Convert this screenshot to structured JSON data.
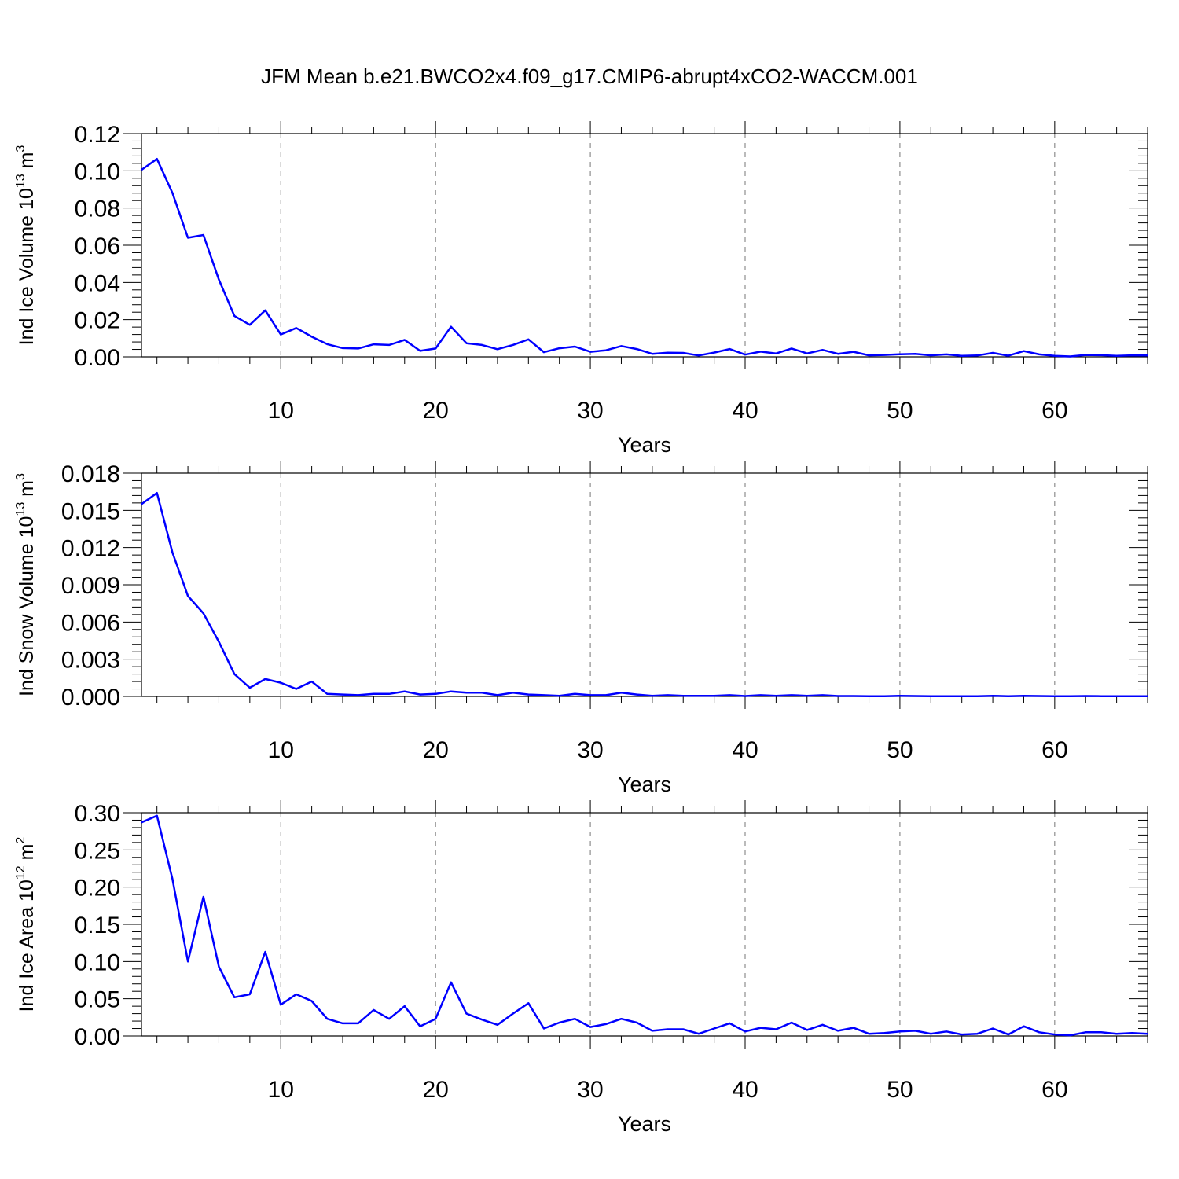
{
  "title": "JFM Mean b.e21.BWCO2x4.f09_g17.CMIP6-abrupt4xCO2-WACCM.001",
  "colors": {
    "line": "#0000ff",
    "grid": "#777777"
  },
  "chart_data": [
    {
      "type": "line",
      "ylabel": {
        "prefix": "Ind Ice Volume 10",
        "sup": "13",
        "unit": " m",
        "unit_sup": "3"
      },
      "xlabel": "Years",
      "xlim": [
        1,
        66
      ],
      "ylim": [
        0,
        0.12
      ],
      "xticks": [
        10,
        20,
        30,
        40,
        50,
        60
      ],
      "yticks": [
        0,
        0.02,
        0.04,
        0.06,
        0.08,
        0.1,
        0.12
      ],
      "ytick_labels": [
        "0.00",
        "0.02",
        "0.04",
        "0.06",
        "0.08",
        "0.10",
        "0.12"
      ],
      "grid": "vertical-dashed",
      "x": [
        1,
        2,
        3,
        4,
        5,
        6,
        7,
        8,
        9,
        10,
        11,
        12,
        13,
        14,
        15,
        16,
        17,
        18,
        19,
        20,
        21,
        22,
        23,
        24,
        25,
        26,
        27,
        28,
        29,
        30,
        31,
        32,
        33,
        34,
        35,
        36,
        37,
        38,
        39,
        40,
        41,
        42,
        43,
        44,
        45,
        46,
        47,
        48,
        49,
        50,
        51,
        52,
        53,
        54,
        55,
        56,
        57,
        58,
        59,
        60,
        61,
        62,
        63,
        64,
        65,
        66
      ],
      "values": [
        0.1005,
        0.1064,
        0.0881,
        0.064,
        0.0655,
        0.0415,
        0.022,
        0.0172,
        0.025,
        0.012,
        0.0155,
        0.0108,
        0.0068,
        0.0047,
        0.0045,
        0.0067,
        0.0064,
        0.0091,
        0.0032,
        0.0045,
        0.0162,
        0.0073,
        0.0064,
        0.0041,
        0.0064,
        0.0094,
        0.0025,
        0.0046,
        0.0055,
        0.0027,
        0.0035,
        0.0058,
        0.0042,
        0.0016,
        0.0022,
        0.0021,
        0.0007,
        0.0023,
        0.0042,
        0.0012,
        0.0028,
        0.0018,
        0.0045,
        0.0018,
        0.0037,
        0.0016,
        0.0027,
        0.0008,
        0.001,
        0.0014,
        0.0016,
        0.0008,
        0.0013,
        0.0005,
        0.0007,
        0.0021,
        0.0006,
        0.0031,
        0.0013,
        0.0005,
        0.0002,
        0.001,
        0.0009,
        0.0005,
        0.0008,
        0.0007
      ]
    },
    {
      "type": "line",
      "ylabel": {
        "prefix": "Ind Snow Volume 10",
        "sup": "13",
        "unit": " m",
        "unit_sup": "3"
      },
      "xlabel": "Years",
      "xlim": [
        1,
        66
      ],
      "ylim": [
        0,
        0.018
      ],
      "xticks": [
        10,
        20,
        30,
        40,
        50,
        60
      ],
      "yticks": [
        0,
        0.003,
        0.006,
        0.009,
        0.012,
        0.015,
        0.018
      ],
      "ytick_labels": [
        "0.000",
        "0.003",
        "0.006",
        "0.009",
        "0.012",
        "0.015",
        "0.018"
      ],
      "grid": "vertical-dashed",
      "x": [
        1,
        2,
        3,
        4,
        5,
        6,
        7,
        8,
        9,
        10,
        11,
        12,
        13,
        14,
        15,
        16,
        17,
        18,
        19,
        20,
        21,
        22,
        23,
        24,
        25,
        26,
        27,
        28,
        29,
        30,
        31,
        32,
        33,
        34,
        35,
        36,
        37,
        38,
        39,
        40,
        41,
        42,
        43,
        44,
        45,
        46,
        47,
        48,
        49,
        50,
        51,
        52,
        53,
        54,
        55,
        56,
        57,
        58,
        59,
        60,
        61,
        62,
        63,
        64,
        65,
        66
      ],
      "values": [
        0.0155,
        0.0164,
        0.0116,
        0.0081,
        0.0067,
        0.0044,
        0.0018,
        0.0007,
        0.0014,
        0.0011,
        0.0006,
        0.0012,
        0.0002,
        0.00015,
        0.0001,
        0.0002,
        0.0002,
        0.0004,
        0.00015,
        0.0002,
        0.0004,
        0.0003,
        0.0003,
        0.0001,
        0.0003,
        0.00015,
        0.0001,
        5e-05,
        0.0002,
        0.0001,
        0.0001,
        0.0003,
        0.00015,
        5e-05,
        0.0001,
        5e-05,
        5e-05,
        5e-05,
        0.0001,
        3e-05,
        0.0001,
        5e-05,
        0.0001,
        5e-05,
        0.0001,
        3e-05,
        3e-05,
        2e-05,
        2e-05,
        5e-05,
        3e-05,
        2e-05,
        2e-05,
        2e-05,
        2e-05,
        5e-05,
        2e-05,
        5e-05,
        3e-05,
        2e-05,
        1e-05,
        3e-05,
        2e-05,
        1e-05,
        2e-05,
        2e-05
      ]
    },
    {
      "type": "line",
      "ylabel": {
        "prefix": "Ind Ice Area 10",
        "sup": "12",
        "unit": " m",
        "unit_sup": "2"
      },
      "xlabel": "Years",
      "xlim": [
        1,
        66
      ],
      "ylim": [
        0,
        0.3
      ],
      "xticks": [
        10,
        20,
        30,
        40,
        50,
        60
      ],
      "yticks": [
        0,
        0.05,
        0.1,
        0.15,
        0.2,
        0.25,
        0.3
      ],
      "ytick_labels": [
        "0.00",
        "0.05",
        "0.10",
        "0.15",
        "0.20",
        "0.25",
        "0.30"
      ],
      "grid": "vertical-dashed",
      "x": [
        1,
        2,
        3,
        4,
        5,
        6,
        7,
        8,
        9,
        10,
        11,
        12,
        13,
        14,
        15,
        16,
        17,
        18,
        19,
        20,
        21,
        22,
        23,
        24,
        25,
        26,
        27,
        28,
        29,
        30,
        31,
        32,
        33,
        34,
        35,
        36,
        37,
        38,
        39,
        40,
        41,
        42,
        43,
        44,
        45,
        46,
        47,
        48,
        49,
        50,
        51,
        52,
        53,
        54,
        55,
        56,
        57,
        58,
        59,
        60,
        61,
        62,
        63,
        64,
        65,
        66
      ],
      "values": [
        0.287,
        0.296,
        0.211,
        0.1,
        0.187,
        0.093,
        0.052,
        0.056,
        0.113,
        0.042,
        0.056,
        0.047,
        0.023,
        0.017,
        0.017,
        0.035,
        0.023,
        0.04,
        0.013,
        0.023,
        0.072,
        0.03,
        0.022,
        0.015,
        0.03,
        0.044,
        0.01,
        0.018,
        0.023,
        0.012,
        0.016,
        0.023,
        0.018,
        0.007,
        0.009,
        0.009,
        0.003,
        0.01,
        0.017,
        0.006,
        0.011,
        0.009,
        0.018,
        0.008,
        0.015,
        0.007,
        0.011,
        0.003,
        0.004,
        0.006,
        0.007,
        0.003,
        0.006,
        0.002,
        0.003,
        0.01,
        0.002,
        0.013,
        0.005,
        0.002,
        0.001,
        0.005,
        0.005,
        0.003,
        0.004,
        0.003
      ]
    }
  ]
}
